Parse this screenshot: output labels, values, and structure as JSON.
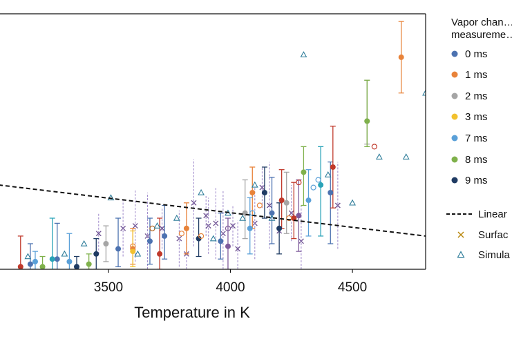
{
  "chart_data": {
    "type": "scatter",
    "xlabel": "Temperature in K",
    "ylabel": "",
    "xlim": [
      3050,
      4800
    ],
    "ylim": [
      0,
      1
    ],
    "x_ticks": [
      3500,
      4000,
      4500
    ],
    "grid": false,
    "legend_placement": "right",
    "legend_title": "Vapor chan… measureme…",
    "legend": [
      {
        "label": "0 ms",
        "color": "#4C72B0",
        "marker": "dot"
      },
      {
        "label": "1 ms",
        "color": "#E8833A",
        "marker": "dot"
      },
      {
        "label": "2 ms",
        "color": "#A5A5A5",
        "marker": "dot"
      },
      {
        "label": "3 ms",
        "color": "#F2C12E",
        "marker": "dot"
      },
      {
        "label": "7 ms",
        "color": "#5AA0D8",
        "marker": "dot"
      },
      {
        "label": "8 ms",
        "color": "#7FB14B",
        "marker": "dot"
      },
      {
        "label": "9 ms",
        "color": "#1F3B63",
        "marker": "dot"
      },
      {
        "label": "Linear",
        "color": "#111111",
        "marker": "dashed-line"
      },
      {
        "label": "Surfac",
        "color": "#B8860B",
        "marker": "x"
      },
      {
        "label": "Simula",
        "color": "#2E7D9A",
        "marker": "triangle"
      }
    ],
    "linear_fit": {
      "x": [
        3050,
        4800
      ],
      "y": [
        0.33,
        0.13
      ]
    },
    "series": [
      {
        "name": "0 ms",
        "color": "#4C72B0",
        "points": [
          {
            "x": 3180,
            "y": 0.02,
            "lo": 0.0,
            "hi": 0.1
          },
          {
            "x": 3290,
            "y": 0.04,
            "lo": 0.0,
            "hi": 0.18
          },
          {
            "x": 3540,
            "y": 0.08,
            "lo": 0.01,
            "hi": 0.2
          },
          {
            "x": 3670,
            "y": 0.11,
            "lo": 0.02,
            "hi": 0.2
          },
          {
            "x": 3730,
            "y": 0.13,
            "lo": 0.04,
            "hi": 0.25
          },
          {
            "x": 3960,
            "y": 0.11,
            "lo": 0.04,
            "hi": 0.22
          },
          {
            "x": 4170,
            "y": 0.22,
            "lo": 0.1,
            "hi": 0.36
          },
          {
            "x": 4410,
            "y": 0.3,
            "lo": 0.1,
            "hi": 0.42
          }
        ]
      },
      {
        "name": "1 ms",
        "color": "#E8833A",
        "points": [
          {
            "x": 3600,
            "y": 0.08,
            "lo": 0.02,
            "hi": 0.16
          },
          {
            "x": 3820,
            "y": 0.16,
            "lo": 0.06,
            "hi": 0.26
          },
          {
            "x": 4090,
            "y": 0.3,
            "lo": 0.16,
            "hi": 0.4
          },
          {
            "x": 4700,
            "y": 0.83,
            "lo": 0.69,
            "hi": 0.97
          }
        ]
      },
      {
        "name": "2 ms",
        "color": "#A5A5A5",
        "points": [
          {
            "x": 3490,
            "y": 0.1,
            "lo": 0.03,
            "hi": 0.17
          },
          {
            "x": 4060,
            "y": 0.22,
            "lo": 0.12,
            "hi": 0.35
          },
          {
            "x": 4230,
            "y": 0.26,
            "lo": 0.14,
            "hi": 0.38
          },
          {
            "x": 4560,
            "y": 0.58,
            "lo": 0.49,
            "hi": 0.74
          }
        ]
      },
      {
        "name": "3 ms",
        "color": "#F2C12E",
        "points": [
          {
            "x": 3600,
            "y": 0.07,
            "lo": 0.01,
            "hi": 0.15
          }
        ]
      },
      {
        "name": "7 ms",
        "color": "#5AA0D8",
        "points": [
          {
            "x": 3200,
            "y": 0.03,
            "lo": 0.0,
            "hi": 0.07
          },
          {
            "x": 3340,
            "y": 0.03,
            "lo": 0.0,
            "hi": 0.14
          },
          {
            "x": 4080,
            "y": 0.16,
            "lo": 0.06,
            "hi": 0.28
          },
          {
            "x": 4320,
            "y": 0.27,
            "lo": 0.13,
            "hi": 0.39
          }
        ]
      },
      {
        "name": "8 ms",
        "color": "#7FB14B",
        "points": [
          {
            "x": 3230,
            "y": 0.01,
            "lo": 0.0,
            "hi": 0.05
          },
          {
            "x": 3420,
            "y": 0.02,
            "lo": 0.0,
            "hi": 0.06
          },
          {
            "x": 4300,
            "y": 0.38,
            "lo": 0.25,
            "hi": 0.48
          },
          {
            "x": 4560,
            "y": 0.58,
            "lo": 0.48,
            "hi": 0.74
          }
        ]
      },
      {
        "name": "9 ms",
        "color": "#1F3B63",
        "points": [
          {
            "x": 3370,
            "y": 0.01,
            "lo": 0.0,
            "hi": 0.05
          },
          {
            "x": 3450,
            "y": 0.06,
            "lo": 0.0,
            "hi": 0.12
          },
          {
            "x": 3870,
            "y": 0.12,
            "lo": 0.05,
            "hi": 0.2
          },
          {
            "x": 4140,
            "y": 0.3,
            "lo": 0.2,
            "hi": 0.4
          },
          {
            "x": 4200,
            "y": 0.16,
            "lo": 0.06,
            "hi": 0.26
          }
        ]
      },
      {
        "name": "",
        "color": "#C0392B",
        "points": [
          {
            "x": 3140,
            "y": 0.01,
            "lo": 0.0,
            "hi": 0.13
          },
          {
            "x": 3710,
            "y": 0.06,
            "lo": 0.0,
            "hi": 0.2
          },
          {
            "x": 4210,
            "y": 0.27,
            "lo": 0.16,
            "hi": 0.39
          },
          {
            "x": 4260,
            "y": 0.2,
            "lo": 0.12,
            "hi": 0.34
          },
          {
            "x": 4420,
            "y": 0.4,
            "lo": 0.24,
            "hi": 0.56
          }
        ]
      },
      {
        "name": "",
        "color": "#7E5A9B",
        "points": [
          {
            "x": 3990,
            "y": 0.09,
            "lo": 0.0,
            "hi": 0.2
          },
          {
            "x": 4280,
            "y": 0.21,
            "lo": 0.07,
            "hi": 0.35
          }
        ]
      },
      {
        "name": "",
        "color": "#2AA3B8",
        "points": [
          {
            "x": 3270,
            "y": 0.04,
            "lo": 0.0,
            "hi": 0.2
          },
          {
            "x": 4370,
            "y": 0.33,
            "lo": 0.13,
            "hi": 0.48
          }
        ]
      }
    ],
    "open_circle_points": [
      {
        "x": 3600,
        "y": 0.09,
        "color": "#E8833A"
      },
      {
        "x": 3680,
        "y": 0.16,
        "color": "#B5651D"
      },
      {
        "x": 3800,
        "y": 0.14,
        "color": "#E8833A"
      },
      {
        "x": 3880,
        "y": 0.13,
        "color": "#E8833A"
      },
      {
        "x": 4120,
        "y": 0.25,
        "color": "#E8833A"
      },
      {
        "x": 4240,
        "y": 0.2,
        "color": "#E8833A"
      },
      {
        "x": 4280,
        "y": 0.34,
        "color": "#C0392B"
      },
      {
        "x": 4340,
        "y": 0.32,
        "color": "#5AA0D8"
      },
      {
        "x": 4360,
        "y": 0.35,
        "color": "#5AA0D8"
      },
      {
        "x": 4590,
        "y": 0.48,
        "color": "#C0392B"
      },
      {
        "x": 4090,
        "y": 0.22,
        "color": "#5AA0D8"
      },
      {
        "x": 3990,
        "y": 0.16,
        "color": "#7E5A9B"
      }
    ],
    "surface_x_points": [
      {
        "x": 3460,
        "y": 0.14
      },
      {
        "x": 3560,
        "y": 0.16
      },
      {
        "x": 3610,
        "y": 0.17
      },
      {
        "x": 3660,
        "y": 0.13
      },
      {
        "x": 3720,
        "y": 0.16
      },
      {
        "x": 3790,
        "y": 0.12
      },
      {
        "x": 3820,
        "y": 0.06
      },
      {
        "x": 3850,
        "y": 0.26
      },
      {
        "x": 3900,
        "y": 0.21
      },
      {
        "x": 3910,
        "y": 0.17
      },
      {
        "x": 3940,
        "y": 0.18
      },
      {
        "x": 3970,
        "y": 0.14
      },
      {
        "x": 4010,
        "y": 0.17
      },
      {
        "x": 4030,
        "y": 0.08
      },
      {
        "x": 4100,
        "y": 0.18
      },
      {
        "x": 4160,
        "y": 0.25
      },
      {
        "x": 4200,
        "y": 0.15
      },
      {
        "x": 4250,
        "y": 0.22
      },
      {
        "x": 4290,
        "y": 0.11
      },
      {
        "x": 4440,
        "y": 0.25
      },
      {
        "x": 4130,
        "y": 0.32
      }
    ],
    "simulation_points": [
      {
        "x": 3170,
        "y": 0.05
      },
      {
        "x": 3320,
        "y": 0.06
      },
      {
        "x": 3400,
        "y": 0.1
      },
      {
        "x": 3510,
        "y": 0.28
      },
      {
        "x": 3620,
        "y": 0.06
      },
      {
        "x": 3700,
        "y": 0.17
      },
      {
        "x": 3780,
        "y": 0.2
      },
      {
        "x": 3880,
        "y": 0.3
      },
      {
        "x": 3930,
        "y": 0.12
      },
      {
        "x": 3990,
        "y": 0.22
      },
      {
        "x": 4050,
        "y": 0.2
      },
      {
        "x": 4100,
        "y": 0.33
      },
      {
        "x": 4170,
        "y": 0.2
      },
      {
        "x": 4400,
        "y": 0.37
      },
      {
        "x": 4500,
        "y": 0.26
      },
      {
        "x": 4300,
        "y": 0.84
      },
      {
        "x": 4610,
        "y": 0.44
      },
      {
        "x": 4720,
        "y": 0.44
      },
      {
        "x": 4800,
        "y": 0.69
      }
    ]
  }
}
